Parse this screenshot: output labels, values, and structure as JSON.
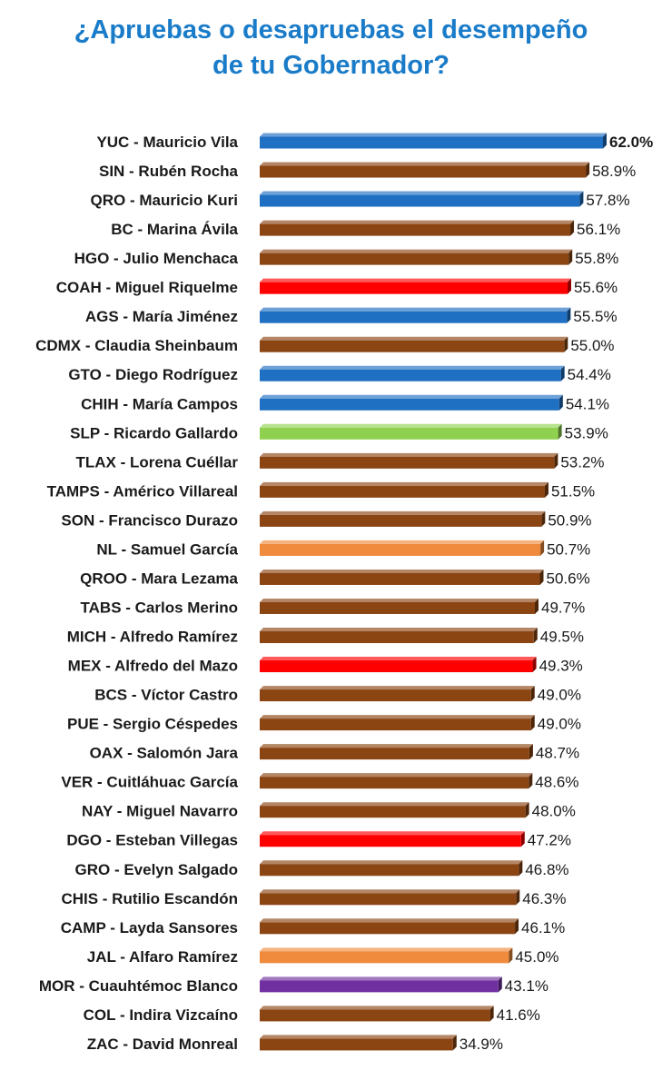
{
  "title": {
    "line1": "¿Apruebas o desapruebas el desempeño",
    "line2": "de tu Gobernador?"
  },
  "colors": {
    "title": "#1a7cc9",
    "blue": "#1f6fc3",
    "brown": "#8b4513",
    "red": "#ff0000",
    "green": "#8fd14f",
    "orange": "#f08a3c",
    "purple": "#7030a0"
  },
  "chart_data": {
    "type": "bar",
    "orientation": "horizontal",
    "title": "¿Apruebas o desapruebas el desempeño de tu Gobernador?",
    "xlim": [
      0,
      62
    ],
    "grid": false,
    "legend": "none",
    "categories": [
      "YUC - Mauricio Vila",
      "SIN - Rubén Rocha",
      "QRO - Mauricio Kuri",
      "BC - Marina Ávila",
      "HGO - Julio Menchaca",
      "COAH - Miguel Riquelme",
      "AGS - María Jiménez",
      "CDMX - Claudia Sheinbaum",
      "GTO - Diego Rodríguez",
      "CHIH - María Campos",
      "SLP - Ricardo Gallardo",
      "TLAX - Lorena Cuéllar",
      "TAMPS - Américo Villareal",
      "SON - Francisco Durazo",
      "NL - Samuel García",
      "QROO - Mara Lezama",
      "TABS - Carlos Merino",
      "MICH - Alfredo Ramírez",
      "MEX - Alfredo del Mazo",
      "BCS - Víctor Castro",
      "PUE - Sergio Céspedes",
      "OAX - Salomón Jara",
      "VER - Cuitláhuac García",
      "NAY - Miguel Navarro",
      "DGO - Esteban Villegas",
      "GRO - Evelyn Salgado",
      "CHIS - Rutilio Escandón",
      "CAMP - Layda Sansores",
      "JAL - Alfaro Ramírez",
      "MOR - Cuauhtémoc Blanco",
      "COL - Indira Vizcaíno",
      "ZAC - David Monreal"
    ],
    "values": [
      62.0,
      58.9,
      57.8,
      56.1,
      55.8,
      55.6,
      55.5,
      55.0,
      54.4,
      54.1,
      53.9,
      53.2,
      51.5,
      50.9,
      50.7,
      50.6,
      49.7,
      49.5,
      49.3,
      49.0,
      49.0,
      48.7,
      48.6,
      48.0,
      47.2,
      46.8,
      46.3,
      46.1,
      45.0,
      43.1,
      41.6,
      34.9
    ],
    "value_labels": [
      "62.0%",
      "58.9%",
      "57.8%",
      "56.1%",
      "55.8%",
      "55.6%",
      "55.5%",
      "55.0%",
      "54.4%",
      "54.1%",
      "53.9%",
      "53.2%",
      "51.5%",
      "50.9%",
      "50.7%",
      "50.6%",
      "49.7%",
      "49.5%",
      "49.3%",
      "49.0%",
      "49.0%",
      "48.7%",
      "48.6%",
      "48.0%",
      "47.2%",
      "46.8%",
      "46.3%",
      "46.1%",
      "45.0%",
      "43.1%",
      "41.6%",
      "34.9%"
    ],
    "bar_colors": [
      "blue",
      "brown",
      "blue",
      "brown",
      "brown",
      "red",
      "blue",
      "brown",
      "blue",
      "blue",
      "green",
      "brown",
      "brown",
      "brown",
      "orange",
      "brown",
      "brown",
      "brown",
      "red",
      "brown",
      "brown",
      "brown",
      "brown",
      "brown",
      "red",
      "brown",
      "brown",
      "brown",
      "orange",
      "purple",
      "brown",
      "brown"
    ]
  }
}
